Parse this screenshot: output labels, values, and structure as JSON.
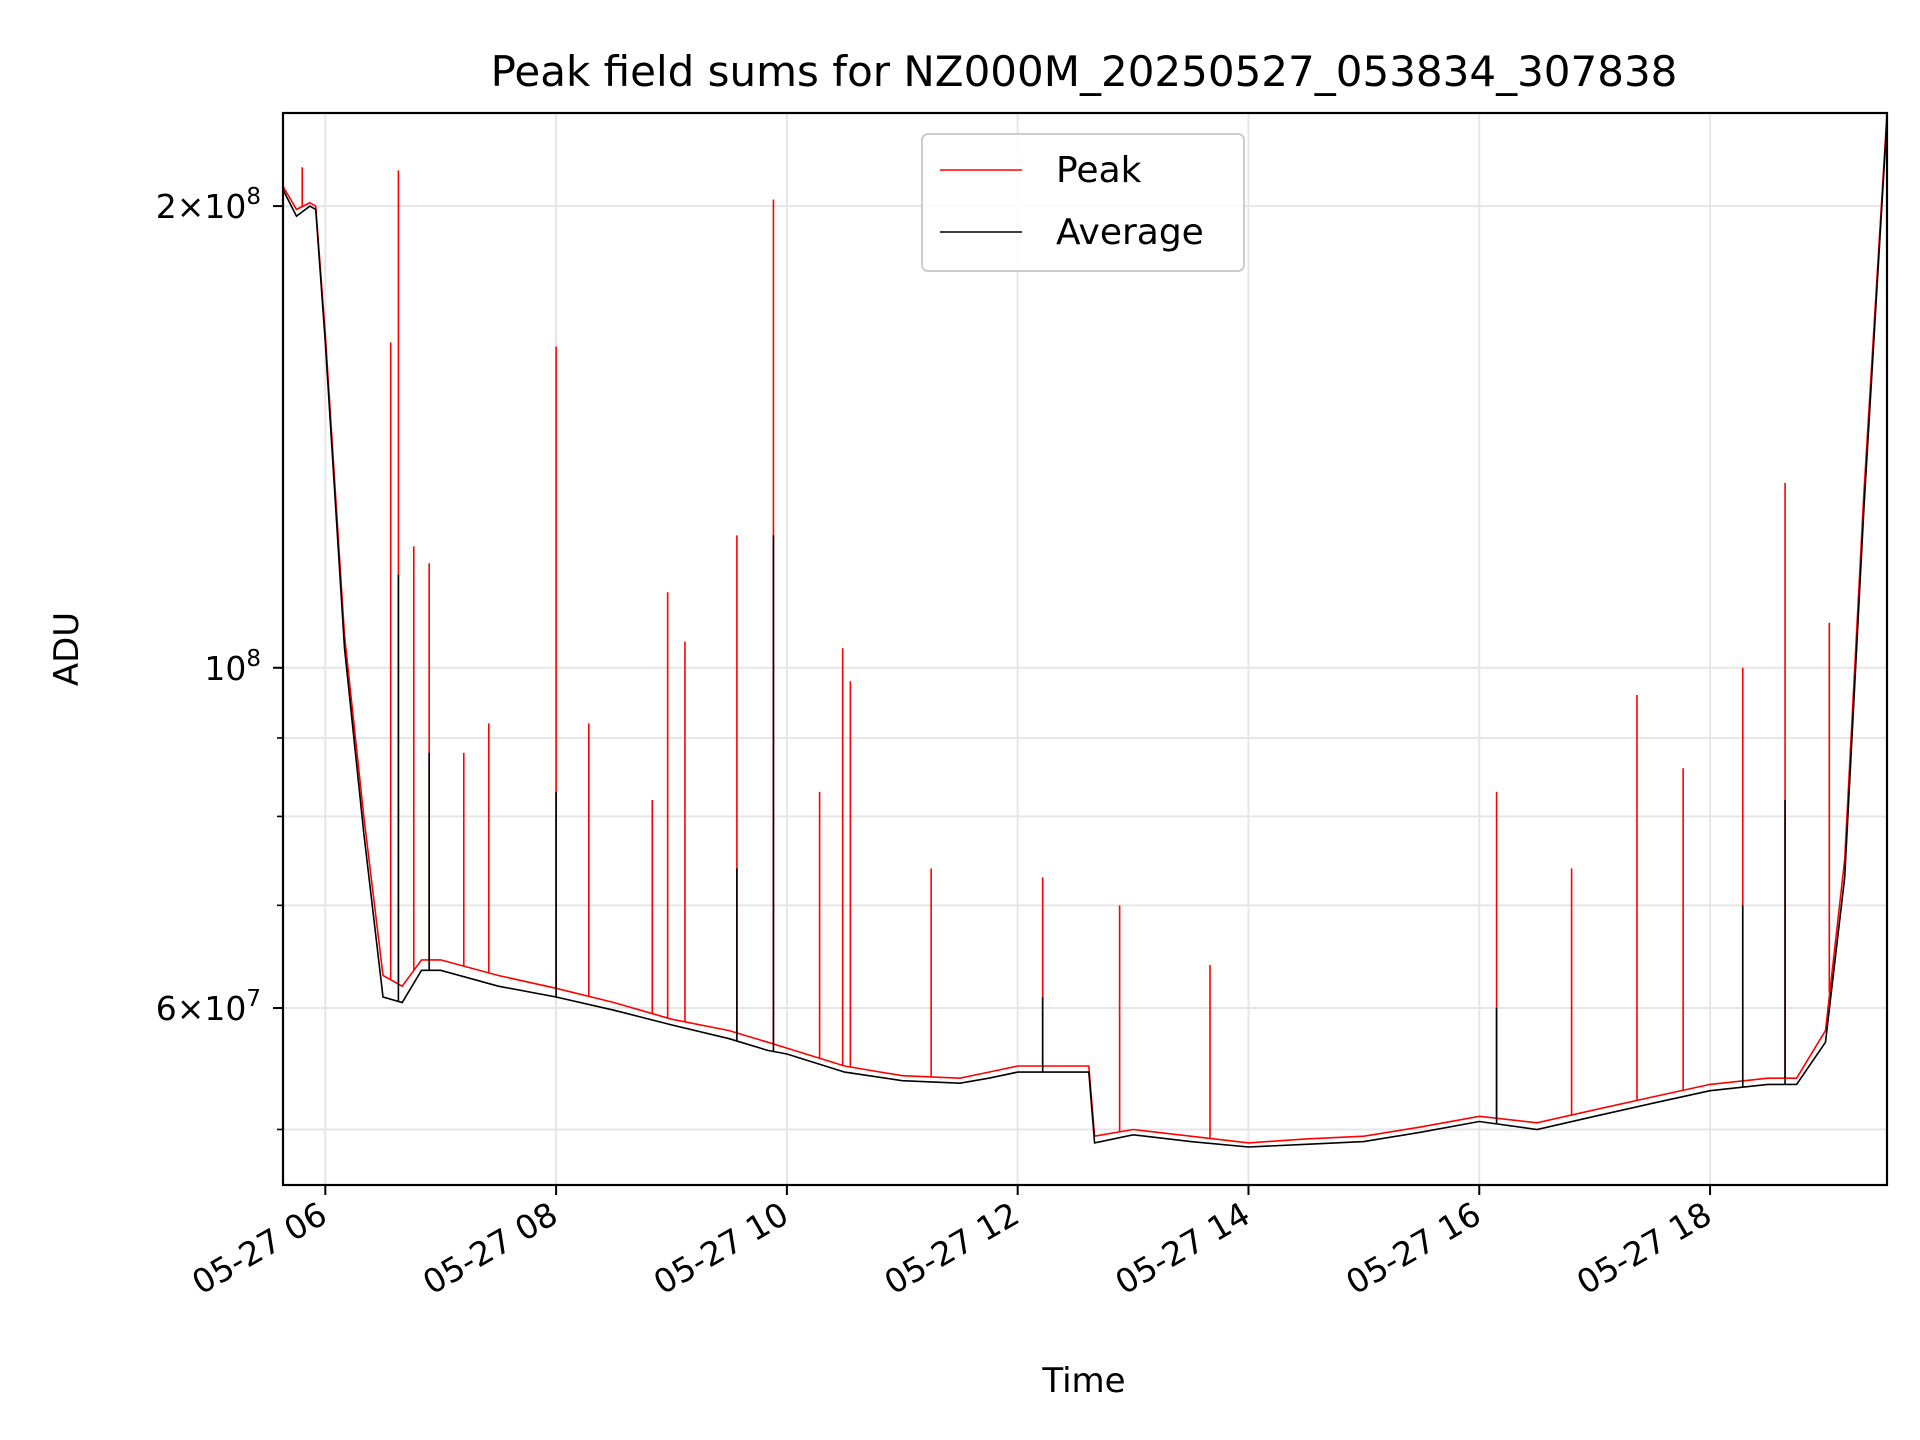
{
  "chart_data": {
    "type": "line",
    "title": "Peak field sums for NZ000M_20250527_053834_307838",
    "xlabel": "Time",
    "ylabel": "ADU",
    "yscale": "log",
    "grid": true,
    "legend_position": "top-center",
    "xlim": [
      "2025-05-27 05:38",
      "2025-05-27 19:32"
    ],
    "ylim": [
      46000000,
      230000000
    ],
    "x_ticks": [
      {
        "value": "2025-05-27 06:00",
        "label": "05-27 06"
      },
      {
        "value": "2025-05-27 08:00",
        "label": "05-27 08"
      },
      {
        "value": "2025-05-27 10:00",
        "label": "05-27 10"
      },
      {
        "value": "2025-05-27 12:00",
        "label": "05-27 12"
      },
      {
        "value": "2025-05-27 14:00",
        "label": "05-27 14"
      },
      {
        "value": "2025-05-27 16:00",
        "label": "05-27 16"
      },
      {
        "value": "2025-05-27 18:00",
        "label": "05-27 18"
      }
    ],
    "y_major_ticks": [
      {
        "value": 60000000,
        "base": "6×10",
        "exp": "7"
      },
      {
        "value": 100000000,
        "base": "10",
        "exp": "8"
      },
      {
        "value": 200000000,
        "base": "2×10",
        "exp": "8"
      }
    ],
    "y_minor_ticks": [
      50000000,
      70000000,
      80000000,
      90000000
    ],
    "series": [
      {
        "name": "Peak",
        "color": "#ff0000",
        "x": [
          "2025-05-27 05:38",
          "2025-05-27 05:45",
          "2025-05-27 05:52",
          "2025-05-27 05:55",
          "2025-05-27 06:00",
          "2025-05-27 06:10",
          "2025-05-27 06:20",
          "2025-05-27 06:30",
          "2025-05-27 06:40",
          "2025-05-27 06:50",
          "2025-05-27 07:00",
          "2025-05-27 07:30",
          "2025-05-27 08:00",
          "2025-05-27 08:30",
          "2025-05-27 09:00",
          "2025-05-27 09:30",
          "2025-05-27 09:50",
          "2025-05-27 10:00",
          "2025-05-27 10:30",
          "2025-05-27 11:00",
          "2025-05-27 11:30",
          "2025-05-27 11:45",
          "2025-05-27 12:00",
          "2025-05-27 12:30",
          "2025-05-27 12:37",
          "2025-05-27 12:40",
          "2025-05-27 13:00",
          "2025-05-27 13:30",
          "2025-05-27 14:00",
          "2025-05-27 14:30",
          "2025-05-27 15:00",
          "2025-05-27 15:30",
          "2025-05-27 16:00",
          "2025-05-27 16:30",
          "2025-05-27 17:00",
          "2025-05-27 17:30",
          "2025-05-27 18:00",
          "2025-05-27 18:30",
          "2025-05-27 18:45",
          "2025-05-27 19:00",
          "2025-05-27 19:10",
          "2025-05-27 19:20",
          "2025-05-27 19:32"
        ],
        "y": [
          206000000,
          199000000,
          201000000,
          200000000,
          165000000,
          105000000,
          80000000,
          63000000,
          62000000,
          64500000,
          64500000,
          63000000,
          61800000,
          60500000,
          59000000,
          58000000,
          57000000,
          56500000,
          55000000,
          54200000,
          54000000,
          54500000,
          55000000,
          55000000,
          55000000,
          49500000,
          50000000,
          49500000,
          49000000,
          49300000,
          49500000,
          50200000,
          51000000,
          50500000,
          51500000,
          52500000,
          53500000,
          54000000,
          54000000,
          58000000,
          75000000,
          130000000,
          230000000
        ],
        "spikes": [
          {
            "x": "2025-05-27 05:48",
            "y": 212000000
          },
          {
            "x": "2025-05-27 06:34",
            "y": 163000000
          },
          {
            "x": "2025-05-27 06:38",
            "y": 211000000
          },
          {
            "x": "2025-05-27 06:46",
            "y": 120000000
          },
          {
            "x": "2025-05-27 06:54",
            "y": 117000000
          },
          {
            "x": "2025-05-27 07:12",
            "y": 88000000
          },
          {
            "x": "2025-05-27 07:25",
            "y": 92000000
          },
          {
            "x": "2025-05-27 08:00",
            "y": 162000000
          },
          {
            "x": "2025-05-27 08:17",
            "y": 92000000
          },
          {
            "x": "2025-05-27 08:50",
            "y": 82000000
          },
          {
            "x": "2025-05-27 08:58",
            "y": 112000000
          },
          {
            "x": "2025-05-27 09:07",
            "y": 104000000
          },
          {
            "x": "2025-05-27 09:34",
            "y": 122000000
          },
          {
            "x": "2025-05-27 09:53",
            "y": 202000000
          },
          {
            "x": "2025-05-27 10:17",
            "y": 83000000
          },
          {
            "x": "2025-05-27 10:29",
            "y": 103000000
          },
          {
            "x": "2025-05-27 10:33",
            "y": 98000000
          },
          {
            "x": "2025-05-27 11:15",
            "y": 74000000
          },
          {
            "x": "2025-05-27 12:13",
            "y": 73000000
          },
          {
            "x": "2025-05-27 12:53",
            "y": 70000000
          },
          {
            "x": "2025-05-27 13:40",
            "y": 64000000
          },
          {
            "x": "2025-05-27 16:09",
            "y": 83000000
          },
          {
            "x": "2025-05-27 16:48",
            "y": 74000000
          },
          {
            "x": "2025-05-27 17:22",
            "y": 96000000
          },
          {
            "x": "2025-05-27 17:46",
            "y": 86000000
          },
          {
            "x": "2025-05-27 18:17",
            "y": 100000000
          },
          {
            "x": "2025-05-27 18:39",
            "y": 132000000
          },
          {
            "x": "2025-05-27 19:02",
            "y": 107000000
          }
        ]
      },
      {
        "name": "Average",
        "color": "#000000",
        "x": [
          "2025-05-27 05:38",
          "2025-05-27 05:45",
          "2025-05-27 05:52",
          "2025-05-27 05:55",
          "2025-05-27 06:00",
          "2025-05-27 06:10",
          "2025-05-27 06:20",
          "2025-05-27 06:30",
          "2025-05-27 06:40",
          "2025-05-27 06:50",
          "2025-05-27 07:00",
          "2025-05-27 07:30",
          "2025-05-27 08:00",
          "2025-05-27 08:30",
          "2025-05-27 09:00",
          "2025-05-27 09:30",
          "2025-05-27 09:50",
          "2025-05-27 10:00",
          "2025-05-27 10:30",
          "2025-05-27 11:00",
          "2025-05-27 11:30",
          "2025-05-27 11:45",
          "2025-05-27 12:00",
          "2025-05-27 12:30",
          "2025-05-27 12:37",
          "2025-05-27 12:40",
          "2025-05-27 13:00",
          "2025-05-27 13:30",
          "2025-05-27 14:00",
          "2025-05-27 14:30",
          "2025-05-27 15:00",
          "2025-05-27 15:30",
          "2025-05-27 16:00",
          "2025-05-27 16:30",
          "2025-05-27 17:00",
          "2025-05-27 17:30",
          "2025-05-27 18:00",
          "2025-05-27 18:30",
          "2025-05-27 18:45",
          "2025-05-27 19:00",
          "2025-05-27 19:10",
          "2025-05-27 19:20",
          "2025-05-27 19:32"
        ],
        "y": [
          205000000,
          197000000,
          200000000,
          199000000,
          163000000,
          103000000,
          78000000,
          61000000,
          60500000,
          63500000,
          63500000,
          62000000,
          61000000,
          59800000,
          58500000,
          57300000,
          56300000,
          56000000,
          54500000,
          53800000,
          53600000,
          54000000,
          54500000,
          54500000,
          54500000,
          49000000,
          49600000,
          49100000,
          48700000,
          48900000,
          49100000,
          49800000,
          50600000,
          50000000,
          51000000,
          52000000,
          53000000,
          53500000,
          53500000,
          57000000,
          73000000,
          127000000,
          228000000
        ],
        "spikes": [
          {
            "x": "2025-05-27 06:38",
            "y": 115000000
          },
          {
            "x": "2025-05-27 06:54",
            "y": 88000000
          },
          {
            "x": "2025-05-27 08:00",
            "y": 83000000
          },
          {
            "x": "2025-05-27 09:34",
            "y": 74000000
          },
          {
            "x": "2025-05-27 09:53",
            "y": 122000000
          },
          {
            "x": "2025-05-27 12:13",
            "y": 61000000
          },
          {
            "x": "2025-05-27 16:09",
            "y": 60000000
          },
          {
            "x": "2025-05-27 18:17",
            "y": 70000000
          },
          {
            "x": "2025-05-27 18:39",
            "y": 82000000
          }
        ]
      }
    ]
  }
}
